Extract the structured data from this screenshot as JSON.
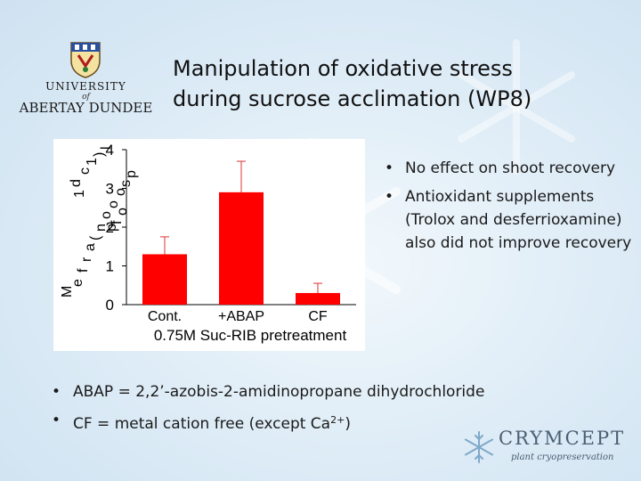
{
  "logo": {
    "crest_icon": "university-crest-icon",
    "line1": "UNIVERSITY",
    "line2": "of",
    "line3": "ABERTAY DUNDEE"
  },
  "title": {
    "line1": "Manipulation of oxidative stress",
    "line2": "during sucrose acclimation (WP8)"
  },
  "chart_data": {
    "type": "bar",
    "categories": [
      "Cont.",
      "+ABAP",
      "CF"
    ],
    "values": [
      1.3,
      2.9,
      0.3
    ],
    "errors": [
      0.45,
      0.8,
      0.25
    ],
    "bar_color": "#ff0000",
    "xlabel": "0.75M Suc-RIB pretreatment",
    "ylabel_fragments": [
      "M",
      "e",
      "f",
      "r",
      "a",
      "(",
      "n",
      "1",
      "d",
      "o",
      "o",
      "o",
      "s",
      "p",
      "c",
      "1",
      ")",
      "l",
      "p",
      "f",
      "o"
    ],
    "y_ticks": [
      "0",
      "1",
      "2",
      "3",
      "4"
    ],
    "ylim": [
      0,
      4
    ],
    "grid": false
  },
  "bullets_right": [
    "No effect on shoot recovery",
    "Antioxidant supplements (Trolox and desferrioxamine) also did not improve recovery"
  ],
  "bullets_bottom": {
    "item1": "ABAP = 2,2’-azobis-2-amidinopropane dihydrochloride",
    "item2_text": "CF = metal cation free (except Ca",
    "item2_sup": "2+",
    "item2_end": ")"
  },
  "brand": {
    "icon": "snowflake-icon",
    "name": "CRYMCEPT",
    "tagline": "plant cryopreservation"
  },
  "colors": {
    "background": "#dcebf6",
    "bar": "#ff0000",
    "brand": "#4b5e72"
  }
}
